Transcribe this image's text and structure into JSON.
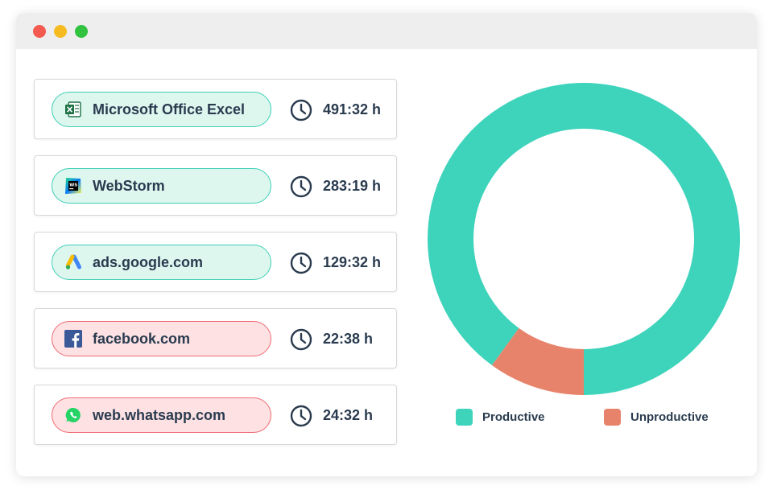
{
  "apps": [
    {
      "name": "Microsoft Office Excel",
      "duration": "491:32 h",
      "category": "productive",
      "icon": "excel-icon"
    },
    {
      "name": "WebStorm",
      "duration": "283:19 h",
      "category": "productive",
      "icon": "webstorm-icon"
    },
    {
      "name": "ads.google.com",
      "duration": "129:32 h",
      "category": "productive",
      "icon": "google-ads-icon"
    },
    {
      "name": "facebook.com",
      "duration": "22:38 h",
      "category": "unproductive",
      "icon": "facebook-icon"
    },
    {
      "name": "web.whatsapp.com",
      "duration": "24:32 h",
      "category": "unproductive",
      "icon": "whatsapp-icon"
    }
  ],
  "legend": {
    "productive": "Productive",
    "unproductive": "Unproductive"
  },
  "colors": {
    "productive": "#3ed3bb",
    "unproductive": "#e8836b",
    "productive_pill_bg": "#ddf7ef",
    "unproductive_pill_bg": "#fde1e3"
  },
  "chart_data": {
    "type": "pie",
    "donut": true,
    "categories": [
      "Productive",
      "Unproductive"
    ],
    "values": [
      90,
      10
    ],
    "colors": [
      "#3ed3bb",
      "#e8836b"
    ]
  }
}
